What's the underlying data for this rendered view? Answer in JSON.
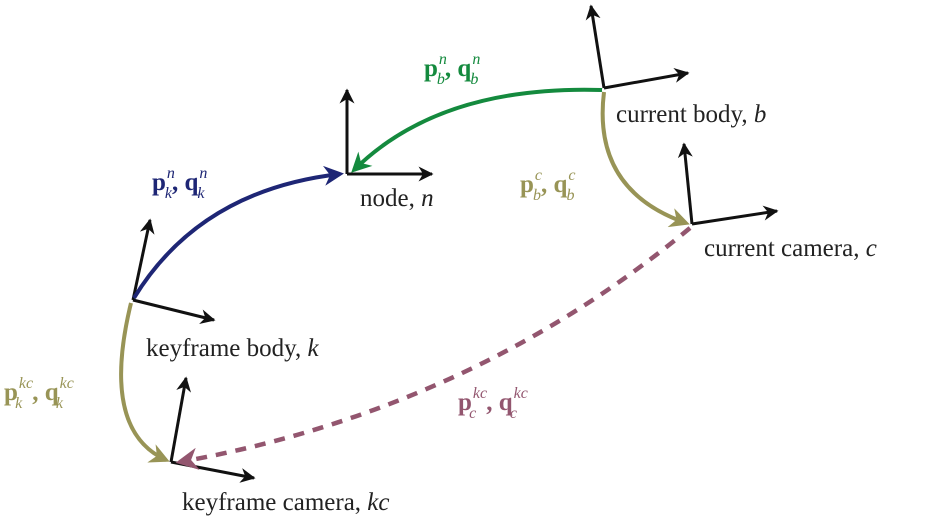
{
  "colors": {
    "axes": "#111111",
    "node_arrow": "#1e2675",
    "body_arrow": "#148a3e",
    "camera_arrow": "#989456",
    "relative_arrow": "#93566f",
    "text": "#222222"
  },
  "frames": {
    "node": {
      "name": "node, ",
      "symbol": "n"
    },
    "current_body": {
      "name": "current body, ",
      "symbol": "b"
    },
    "current_camera": {
      "name": "current camera, ",
      "symbol": "c"
    },
    "keyframe_body": {
      "name": "keyframe body, ",
      "symbol": "k"
    },
    "keyframe_camera": {
      "name": "keyframe camera, ",
      "symbol": "kc"
    }
  },
  "relations": {
    "keyframe_to_node": {
      "p": "p",
      "q": "q",
      "sub": "k",
      "sup": "n",
      "sep": ", "
    },
    "body_to_node": {
      "p": "p",
      "q": "q",
      "sub": "b",
      "sup": "n",
      "sep": ", "
    },
    "body_to_camera": {
      "p": "p",
      "q": "q",
      "sub": "b",
      "sup": "c",
      "sep": ", "
    },
    "keyframe_to_camera": {
      "p": "p",
      "q": "q",
      "sub": "k",
      "sup": "kc",
      "sep": ", "
    },
    "camera_to_keyframe_camera": {
      "p": "p",
      "q": "q",
      "sub": "c",
      "sup": "kc",
      "sep": ", "
    }
  }
}
